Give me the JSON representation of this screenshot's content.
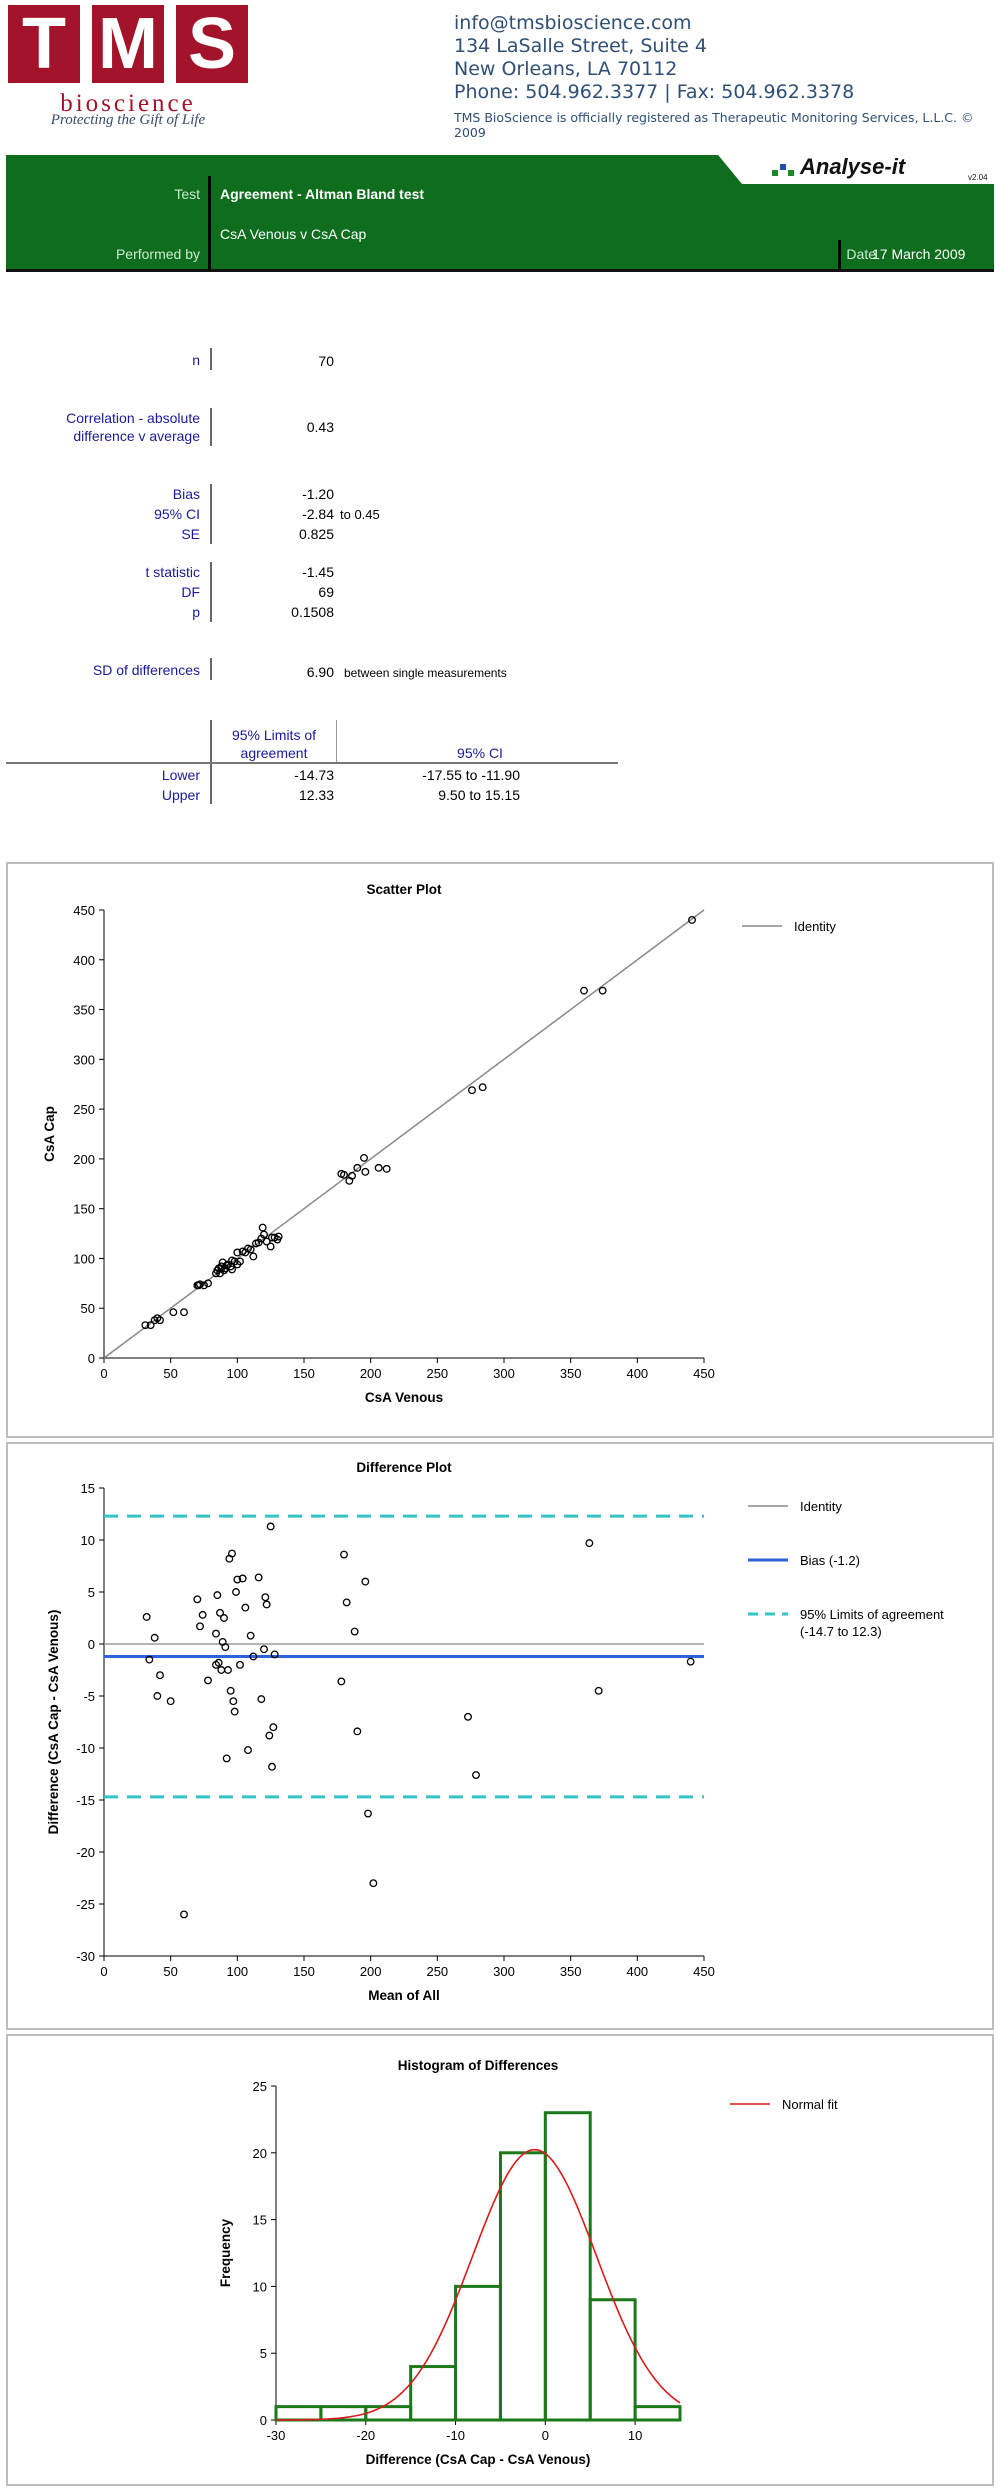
{
  "header": {
    "logo_letters": [
      "T",
      "M",
      "S"
    ],
    "logo_sub": "bioscience",
    "logo_tagline": "Protecting the Gift of Life",
    "contact": [
      "info@tmsbioscience.com",
      "134 LaSalle Street, Suite  4",
      "New Orleans, LA 70112",
      "Phone: 504.962.3377 | Fax: 504.962.3378"
    ],
    "note": "TMS BioScience is officially registered as Therapeutic Monitoring Services, L.L.C. © 2009"
  },
  "report": {
    "brand": "Analyse-it",
    "version": "v2.04",
    "test_label": "Test",
    "test_value": "Agreement - Altman Bland test",
    "comparison": "CsA Venous  v  CsA Cap",
    "performed_label": "Performed by",
    "date_label": "Date",
    "date_value": "17 March 2009"
  },
  "stats": {
    "n_label": "n",
    "n_value": "70",
    "corr_label_1": "Correlation - absolute",
    "corr_label_2": "difference v average",
    "corr_value": "0.43",
    "bias_label": "Bias",
    "bias_value": "-1.20",
    "ci_label": "95% CI",
    "ci_value": "-2.84",
    "ci_to": "to 0.45",
    "se_label": "SE",
    "se_value": "0.825",
    "t_label": "t statistic",
    "t_value": "-1.45",
    "df_label": "DF",
    "df_value": "69",
    "p_label": "p",
    "p_value": "0.1508",
    "sd_label": "SD of differences",
    "sd_value": "6.90",
    "sd_note": "between single measurements"
  },
  "limits_table": {
    "col1_header_1": "95% Limits of",
    "col1_header_2": "agreement",
    "col2_header": "95% CI",
    "rows": [
      {
        "label": "Lower",
        "limit": "-14.73",
        "ci": "-17.55  to -11.90"
      },
      {
        "label": "Upper",
        "limit": "12.33",
        "ci": "9.50  to 15.15"
      }
    ]
  },
  "chart_data": [
    {
      "type": "scatter",
      "title": "Scatter Plot",
      "xlabel": "CsA Venous",
      "ylabel": "CsA Cap",
      "xlim": [
        0,
        450
      ],
      "ylim": [
        0,
        450
      ],
      "xticks": [
        0,
        50,
        100,
        150,
        200,
        250,
        300,
        350,
        400,
        450
      ],
      "yticks": [
        0,
        50,
        100,
        150,
        200,
        250,
        300,
        350,
        400,
        450
      ],
      "legend": [
        {
          "name": "Identity",
          "color": "#888888"
        }
      ],
      "legend_position": "top-right",
      "points": [
        [
          31,
          33
        ],
        [
          35,
          33
        ],
        [
          38,
          38
        ],
        [
          40,
          40
        ],
        [
          42,
          38
        ],
        [
          52,
          46
        ],
        [
          60,
          46
        ],
        [
          70,
          73
        ],
        [
          71,
          73
        ],
        [
          72,
          74
        ],
        [
          78,
          75
        ],
        [
          84,
          85
        ],
        [
          85,
          88
        ],
        [
          86,
          90
        ],
        [
          87,
          85
        ],
        [
          88,
          92
        ],
        [
          89,
          96
        ],
        [
          90,
          88
        ],
        [
          91,
          90
        ],
        [
          93,
          94
        ],
        [
          95,
          92
        ],
        [
          96,
          89
        ],
        [
          98,
          97
        ],
        [
          100,
          106
        ],
        [
          102,
          97
        ],
        [
          104,
          107
        ],
        [
          106,
          106
        ],
        [
          110,
          109
        ],
        [
          112,
          102
        ],
        [
          114,
          115
        ],
        [
          118,
          120
        ],
        [
          119,
          131
        ],
        [
          120,
          124
        ],
        [
          122,
          117
        ],
        [
          125,
          112
        ],
        [
          128,
          121
        ],
        [
          130,
          119
        ],
        [
          131,
          122
        ],
        [
          178,
          185
        ],
        [
          180,
          184
        ],
        [
          184,
          178
        ],
        [
          186,
          183
        ],
        [
          190,
          191
        ],
        [
          195,
          201
        ],
        [
          196,
          187
        ],
        [
          206,
          191
        ],
        [
          212,
          190
        ],
        [
          276,
          269
        ],
        [
          284,
          272
        ],
        [
          360,
          369
        ],
        [
          374,
          369
        ],
        [
          441,
          440
        ],
        [
          75,
          73
        ],
        [
          92,
          93
        ],
        [
          96,
          98
        ],
        [
          100,
          94
        ],
        [
          108,
          110
        ],
        [
          116,
          116
        ],
        [
          126,
          121
        ],
        [
          88,
          90
        ]
      ]
    },
    {
      "type": "scatter",
      "title": "Difference Plot",
      "xlabel": "Mean of All",
      "ylabel": "Difference (CsA Cap - CsA Venous)",
      "xlim": [
        0,
        450
      ],
      "ylim": [
        -30,
        15
      ],
      "xticks": [
        0,
        50,
        100,
        150,
        200,
        250,
        300,
        350,
        400,
        450
      ],
      "yticks": [
        -30,
        -25,
        -20,
        -15,
        -10,
        -5,
        0,
        5,
        10,
        15
      ],
      "legend": [
        {
          "name": "Identity",
          "color": "#888888"
        },
        {
          "name": "Bias (-1.2)",
          "color": "#2d63d8"
        },
        {
          "name": "95% Limits of agreement",
          "name2": "(-14.7 to 12.3)",
          "color": "#33c4c8"
        }
      ],
      "legend_position": "top-right",
      "bias": -1.2,
      "lower_limit": -14.7,
      "upper_limit": 12.3,
      "points": [
        [
          32,
          2.6
        ],
        [
          34,
          -1.5
        ],
        [
          38,
          0.6
        ],
        [
          40,
          -5.0
        ],
        [
          42,
          -3.0
        ],
        [
          50,
          -5.5
        ],
        [
          60,
          -26.0
        ],
        [
          70,
          4.3
        ],
        [
          72,
          1.7
        ],
        [
          74,
          2.8
        ],
        [
          78,
          -3.5
        ],
        [
          84,
          1.0
        ],
        [
          84,
          -2.0
        ],
        [
          85,
          4.7
        ],
        [
          86,
          -1.8
        ],
        [
          87,
          3.0
        ],
        [
          88,
          -2.5
        ],
        [
          89,
          0.2
        ],
        [
          90,
          2.5
        ],
        [
          91,
          -0.3
        ],
        [
          92,
          -11.0
        ],
        [
          93,
          -2.5
        ],
        [
          94,
          8.2
        ],
        [
          95,
          -4.5
        ],
        [
          96,
          8.7
        ],
        [
          97,
          -5.5
        ],
        [
          98,
          -6.5
        ],
        [
          99,
          5.0
        ],
        [
          100,
          6.2
        ],
        [
          102,
          -2.0
        ],
        [
          104,
          6.3
        ],
        [
          106,
          3.5
        ],
        [
          108,
          -10.2
        ],
        [
          110,
          0.8
        ],
        [
          112,
          -1.2
        ],
        [
          116,
          6.4
        ],
        [
          118,
          -5.3
        ],
        [
          120,
          -0.5
        ],
        [
          121,
          4.5
        ],
        [
          122,
          3.8
        ],
        [
          124,
          -8.8
        ],
        [
          125,
          11.3
        ],
        [
          126,
          -11.8
        ],
        [
          127,
          -8.0
        ],
        [
          128,
          -1.0
        ],
        [
          178,
          -3.6
        ],
        [
          180,
          8.6
        ],
        [
          182,
          4.0
        ],
        [
          188,
          1.2
        ],
        [
          190,
          -8.4
        ],
        [
          196,
          6.0
        ],
        [
          198,
          -16.3
        ],
        [
          202,
          -23.0
        ],
        [
          273,
          -7.0
        ],
        [
          279,
          -12.6
        ],
        [
          364,
          9.7
        ],
        [
          371,
          -4.5
        ],
        [
          440,
          -1.7
        ]
      ]
    },
    {
      "type": "bar",
      "title": "Histogram of Differences",
      "xlabel": "Difference (CsA Cap - CsA Venous)",
      "ylabel": "Frequency",
      "xlim": [
        -30,
        15
      ],
      "ylim": [
        0,
        25
      ],
      "xticks": [
        -30,
        -20,
        -10,
        0,
        10
      ],
      "yticks": [
        0,
        5,
        10,
        15,
        20,
        25
      ],
      "bins": [
        [
          -30,
          -25
        ],
        [
          -25,
          -20
        ],
        [
          -20,
          -15
        ],
        [
          -15,
          -10
        ],
        [
          -10,
          -5
        ],
        [
          -5,
          0
        ],
        [
          0,
          5
        ],
        [
          5,
          10
        ],
        [
          10,
          15
        ]
      ],
      "values": [
        1,
        1,
        1,
        4,
        10,
        20,
        23,
        9,
        1
      ],
      "normal_fit": {
        "mean": -1.2,
        "sd": 6.9,
        "n": 70,
        "binwidth": 5
      },
      "legend": [
        {
          "name": "Normal fit",
          "color": "#d81c1c"
        }
      ],
      "legend_position": "top-right"
    }
  ]
}
